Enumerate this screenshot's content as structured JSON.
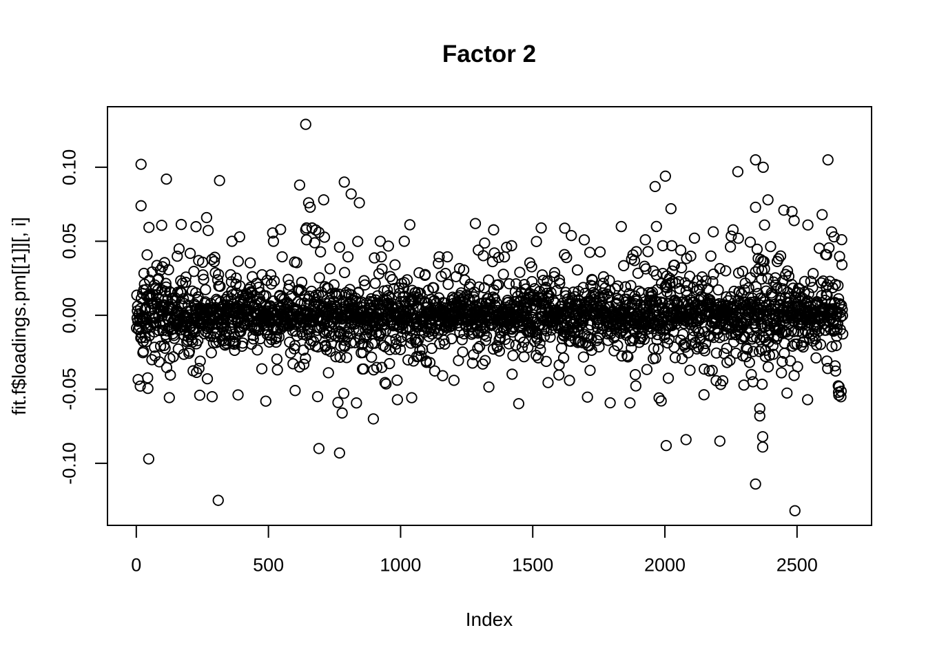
{
  "page": {
    "background": "#ffffff",
    "foreground": "#000000"
  },
  "chart_data": {
    "type": "scatter",
    "title": "Factor 2",
    "xlabel": "Index",
    "ylabel": "fit.f$loadings.pm[[1]][, i]",
    "x_ticks": [
      0,
      500,
      1000,
      1500,
      2000,
      2500
    ],
    "x_tick_labels": [
      "0",
      "500",
      "1000",
      "1500",
      "2000",
      "2500"
    ],
    "y_ticks": [
      -0.1,
      -0.05,
      0.0,
      0.05,
      0.1
    ],
    "y_tick_labels": [
      "-0.10",
      "-0.05",
      "0.00",
      "0.05",
      "0.10"
    ],
    "xlim": [
      -109,
      2782
    ],
    "ylim": [
      -0.1419,
      0.1409
    ],
    "grid": false,
    "legend": null,
    "n_points": 2673,
    "marker": {
      "shape": "open-circle",
      "radius_px": 7.2,
      "stroke_px": 1.9,
      "color": "#000000"
    },
    "description": "R base-graphics scatter of posterior-mean factor loadings (factor 2) versus index; dense band near 0 within about +/-0.03 with sparse outliers to +/-0.13, extra spread at both edges and for index > 2250",
    "cloud_model": {
      "seed": 20250214,
      "components": [
        {
          "prob": 0.82,
          "scale": 0.0085
        },
        {
          "prob": 0.15,
          "scale": 0.018
        },
        {
          "prob": 0.03,
          "scale": 0.03
        }
      ],
      "clamp": 0.062,
      "spread_regions": [
        {
          "from": 1,
          "to": 130,
          "prob": 0.2,
          "mult": 1.7
        },
        {
          "from": 550,
          "to": 900,
          "prob": 0.1,
          "mult": 1.5
        },
        {
          "from": 1900,
          "to": 2150,
          "prob": 0.1,
          "mult": 1.5
        },
        {
          "from": 2250,
          "to": 2673,
          "prob": 0.28,
          "mult": 1.8
        }
      ]
    },
    "outlier_points": [
      [
        18,
        0.102
      ],
      [
        18,
        0.074
      ],
      [
        47,
        -0.097
      ],
      [
        114,
        0.092
      ],
      [
        240,
        -0.054
      ],
      [
        266,
        0.066
      ],
      [
        287,
        -0.055
      ],
      [
        310,
        -0.125
      ],
      [
        315,
        0.091
      ],
      [
        362,
        0.05
      ],
      [
        391,
        0.053
      ],
      [
        490,
        -0.058
      ],
      [
        519,
        0.05
      ],
      [
        618,
        0.088
      ],
      [
        641,
        0.129
      ],
      [
        644,
        0.059
      ],
      [
        644,
        0.051
      ],
      [
        652,
        0.076
      ],
      [
        658,
        0.073
      ],
      [
        675,
        0.049
      ],
      [
        691,
        0.056
      ],
      [
        691,
        -0.09
      ],
      [
        709,
        0.078
      ],
      [
        769,
        0.046
      ],
      [
        769,
        -0.093
      ],
      [
        779,
        -0.066
      ],
      [
        787,
        0.09
      ],
      [
        813,
        0.082
      ],
      [
        844,
        0.076
      ],
      [
        897,
        -0.07
      ],
      [
        923,
        0.05
      ],
      [
        988,
        -0.057
      ],
      [
        1014,
        0.05
      ],
      [
        1283,
        0.062
      ],
      [
        1420,
        0.047
      ],
      [
        1620,
        0.041
      ],
      [
        1874,
        0.038
      ],
      [
        1885,
        0.037
      ],
      [
        1926,
        0.051
      ],
      [
        1963,
        0.087
      ],
      [
        1968,
        0.06
      ],
      [
        1992,
        0.047
      ],
      [
        2002,
        0.094
      ],
      [
        2005,
        -0.088
      ],
      [
        2023,
        0.072
      ],
      [
        2026,
        0.047
      ],
      [
        2060,
        0.044
      ],
      [
        2080,
        -0.084
      ],
      [
        2174,
        0.04
      ],
      [
        2208,
        -0.085
      ],
      [
        2276,
        0.097
      ],
      [
        2278,
        0.052
      ],
      [
        2343,
        0.105
      ],
      [
        2343,
        0.073
      ],
      [
        2343,
        -0.114
      ],
      [
        2359,
        -0.063
      ],
      [
        2359,
        -0.068
      ],
      [
        2370,
        -0.082
      ],
      [
        2370,
        -0.089
      ],
      [
        2372,
        0.1
      ],
      [
        2377,
        0.061
      ],
      [
        2390,
        0.078
      ],
      [
        2450,
        0.071
      ],
      [
        2481,
        0.07
      ],
      [
        2489,
        0.064
      ],
      [
        2492,
        -0.132
      ],
      [
        2540,
        -0.057
      ],
      [
        2541,
        0.061
      ],
      [
        2595,
        0.068
      ],
      [
        2617,
        0.105
      ],
      [
        2640,
        0.053
      ],
      [
        2657,
        -0.052
      ]
    ]
  }
}
